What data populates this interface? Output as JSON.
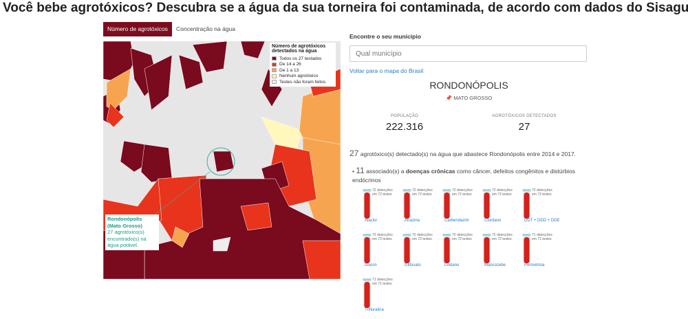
{
  "header": {
    "title": "Você bebe agrotóxicos? Descubra se a água da sua torneira foi contaminada, de acordo com dados do Sisagua"
  },
  "tabs": [
    "Número de agrotóxicos",
    "Concentração na água"
  ],
  "legend": {
    "title": "Número de agrotóxicos detectados na água",
    "items": [
      {
        "label": "Todos os 27 testados",
        "color": "#7a0a1e"
      },
      {
        "label": "De 14 a 26",
        "color": "#e8341c"
      },
      {
        "label": "De 1 a 13",
        "color": "#f7a450"
      },
      {
        "label": "Nenhum agrotóxico",
        "color": "#fff7bc"
      },
      {
        "label": "Testes não foram feitos",
        "color": "#eeeeee"
      }
    ]
  },
  "tooltip": {
    "name": "Rondonópolis (Mato Grosso)",
    "count": 27,
    "text": "agrotóxico(s) encontrado(s) na água potável."
  },
  "search": {
    "label": "Encontre o seu município",
    "placeholder": "Qual município",
    "back": "Voltar para o mapa do Brasil"
  },
  "city": {
    "name": "RONDONÓPOLIS",
    "state": "MATO GROSSO"
  },
  "stats": [
    {
      "label": "POPULAÇÃO",
      "value": "222.316"
    },
    {
      "label": "AGROTÓXICOS DETECTADOS",
      "value": 27
    }
  ],
  "summary": {
    "count": 27,
    "text": "agrotóxico(s) detectado(s) na água que abastece Rondonópolis entre 2014 e 2017."
  },
  "chronic": {
    "count": 11,
    "before": "associado(s) a",
    "bold": "doenças crônicas",
    "after": "como câncer, defeitos congênitos e distúrbios endócrinos"
  },
  "tube_words": {
    "detections": "detecções",
    "in": "em",
    "tests": "testes"
  },
  "tubes": [
    {
      "name": "Alaclor",
      "detections": 72,
      "tests": 72
    },
    {
      "name": "Atrazina",
      "detections": 72,
      "tests": 72
    },
    {
      "name": "Carbendazim",
      "detections": 72,
      "tests": 72
    },
    {
      "name": "Clordano",
      "detections": 72,
      "tests": 72
    },
    {
      "name": "DDT + DDD + DDE",
      "detections": 72,
      "tests": 72
    },
    {
      "name": "Diuron",
      "detections": 72,
      "tests": 72
    },
    {
      "name": "Glifosato",
      "detections": 72,
      "tests": 72
    },
    {
      "name": "Lindano",
      "detections": 72,
      "tests": 72
    },
    {
      "name": "Mancozebe",
      "detections": 72,
      "tests": 72
    },
    {
      "name": "Permetrina",
      "detections": 71,
      "tests": 71
    },
    {
      "name": "Trifluralina",
      "detections": 71,
      "tests": 71
    }
  ]
}
